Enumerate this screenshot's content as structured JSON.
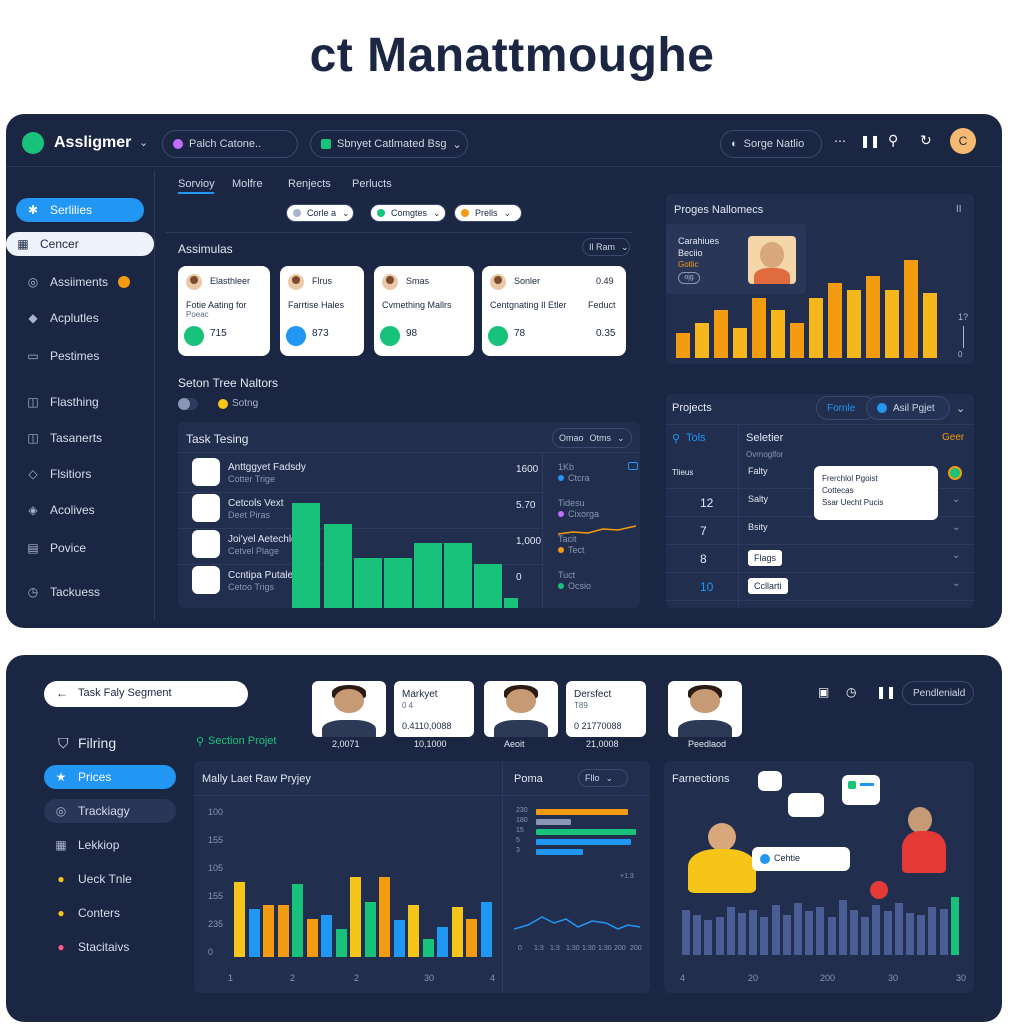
{
  "page_title": "ct Manattmoughe",
  "top": {
    "brand": "Assligmer",
    "search_pill": "Palch Catone..",
    "project_pill": "Sbnyet Catlmated Bsg",
    "user_pill": "Sorge Natlio",
    "avatar_letter": "C"
  },
  "sidebar": [
    {
      "label": "Serlilies",
      "icon": "✱"
    },
    {
      "label": "Cencer",
      "icon": "▦"
    },
    {
      "label": "Assiiments",
      "icon": "◎"
    },
    {
      "label": "Acplutles",
      "icon": "◆"
    },
    {
      "label": "Pestimes",
      "icon": "▭"
    },
    {
      "label": "Flasthing",
      "icon": "◫"
    },
    {
      "label": "Tasanerts",
      "icon": "◫"
    },
    {
      "label": "Flsitiors",
      "icon": "◇"
    },
    {
      "label": "Acolives",
      "icon": "◈"
    },
    {
      "label": "Povice",
      "icon": "▤"
    },
    {
      "label": "Tackuess",
      "icon": "◷"
    }
  ],
  "tabs": [
    "Sorvioy",
    "Molfre",
    "Renjects",
    "Perlucts"
  ],
  "filters": [
    "Corle a",
    "Comgtes",
    "Prells"
  ],
  "assignments": {
    "title": "Assimulas",
    "menu": "Il Ram",
    "cards": [
      {
        "name": "Elasthleer",
        "desc": "Fotie Aating for",
        "sub": "Poeac",
        "value": "715",
        "value2": ""
      },
      {
        "name": "Flrus",
        "desc": "Farrtise Hales",
        "sub": "",
        "value": "873",
        "value2": ""
      },
      {
        "name": "Smas",
        "desc": "Cvmething Mallrs",
        "sub": "",
        "value": "98",
        "value2": ""
      },
      {
        "name": "Sonler",
        "desc": "Centgnating Il Etler",
        "sub": "",
        "value": "78",
        "value2": "0.35",
        "extra_name": "0.49",
        "extra_desc": "Feduct"
      }
    ]
  },
  "section_tree": {
    "title": "Seton Tree Naltors",
    "toggle_label": "Sotng"
  },
  "task_testing": {
    "title": "Task Tesing",
    "btn1": "Omao",
    "btn2": "Otms",
    "rows": [
      {
        "name": "Anttggyet Fadsdy",
        "sub": "Cotter Trige",
        "value": "1600"
      },
      {
        "name": "Cetcols Vext",
        "sub": "Deet Piras",
        "value": "5.70"
      },
      {
        "name": "Joi'yel Aetechlo",
        "sub": "Cetvel Plage",
        "value": "1,000"
      },
      {
        "name": "Ccntipa Putale",
        "sub": "Cetoo Trigs",
        "value": "0"
      }
    ],
    "side_rows": [
      {
        "a": "1Kb",
        "b": "Ctcra"
      },
      {
        "a": "Tidesu",
        "b": "Cixorga"
      },
      {
        "a": "Tacit",
        "b": "Tect"
      },
      {
        "a": "Tuct",
        "b": "Ocsio"
      }
    ],
    "bars": [
      100,
      80,
      48,
      48,
      62,
      62,
      42,
      10
    ]
  },
  "progress_milestones": {
    "title": "Proges Nallomecs",
    "menu": "II",
    "profile_name": "Carahiues",
    "profile_sub": "Beciio",
    "profile_tag": "Gotlic",
    "profile_btn": "ojg",
    "bars": [
      25,
      35,
      48,
      30,
      60,
      48,
      35,
      60,
      75,
      68,
      82,
      68,
      98,
      65
    ],
    "colors": [
      "#f39c12",
      "#f5b71b",
      "#f39c12",
      "#f5b71b",
      "#f39c12",
      "#f5b71b",
      "#f39c12",
      "#f5b71b",
      "#f39c12",
      "#f5b71b",
      "#f39c12",
      "#f5b71b",
      "#f39c12",
      "#f5b71b"
    ],
    "axis_top": "1?",
    "axis_bottom": "0"
  },
  "projects": {
    "title": "Projects",
    "btn_link": "Fornle",
    "btn_select": "Asil Pgjet",
    "col_left": "Tols",
    "col_right": "Seletier",
    "col_right_tag": "Geer",
    "left_rows": [
      "Tlieus",
      "12",
      "7",
      "8",
      "10"
    ],
    "right_header": "Ovrnoglfor",
    "right_rows": [
      "Falty",
      "Salty",
      "Bsity",
      "Flags",
      "Ccllarti"
    ],
    "popup_line1": "Frerchlol Pgoist",
    "popup_line2": "Cottecas",
    "popup_line3": "Ssar Uecht Pucis"
  },
  "bottom": {
    "search_label": "Task Faly Segment",
    "filter_title": "Filring",
    "side": [
      {
        "label": "Prices",
        "icon": "★"
      },
      {
        "label": "Trackiagy",
        "icon": "◎"
      },
      {
        "label": "Lekkiop",
        "icon": "▦"
      },
      {
        "label": "Ueck Tnle",
        "icon": "●"
      },
      {
        "label": "Conters",
        "icon": "●"
      },
      {
        "label": "Stacitaivs",
        "icon": "●"
      }
    ],
    "side_dot_colors": [
      "#ffffff",
      "#ffffff",
      "#ffffff",
      "#f5c518",
      "#f5c518",
      "#ff5c8a"
    ],
    "section_project": "Section Projet",
    "people": [
      {
        "name": "",
        "value": "2,0071"
      },
      {
        "name": "Markyet",
        "sub": "0 4",
        "value": "0.4110,0088",
        "foot": "10,1000"
      },
      {
        "name": "",
        "value": "Aeoit"
      },
      {
        "name": "Dersfect",
        "sub": "T89",
        "value": "0 21770088",
        "foot": "21,0008"
      },
      {
        "name": "",
        "value": "Peedlaod"
      }
    ],
    "toolbar_btn": "Pendleniald",
    "main_chart_title": "Mally Laet Raw Pryjey",
    "yticks": [
      "100",
      "155",
      "105",
      "155",
      "235",
      "0"
    ],
    "xticks": [
      "1",
      "2",
      "2",
      "30",
      "4"
    ],
    "poma_title": "Poma",
    "poma_filter": "Fllo",
    "poma_ylabels": [
      "230",
      "180",
      "15",
      "5",
      "3"
    ],
    "poma_xticks": [
      "0",
      "1:3",
      "1:3",
      "1:30",
      "1:30",
      "1:30",
      "200",
      "200"
    ],
    "poma_note": "+1:3",
    "fam_title": "Farnections",
    "fam_bubble": "Cehtie",
    "fam_xticks": [
      "4",
      "20",
      "200",
      "30",
      "30"
    ]
  },
  "chart_data": [
    {
      "type": "bar",
      "title": "Task Tesing",
      "values": [
        100,
        80,
        48,
        48,
        62,
        62,
        42,
        10
      ]
    },
    {
      "type": "bar",
      "title": "Proges Nallomecs",
      "values": [
        25,
        35,
        48,
        30,
        60,
        48,
        35,
        60,
        75,
        68,
        82,
        68,
        98,
        65
      ]
    },
    {
      "type": "bar",
      "title": "Mally Laet Raw Pryjey",
      "values": [
        75,
        48,
        52,
        52,
        73,
        38,
        42,
        28,
        80,
        55,
        80,
        37,
        52,
        18,
        30,
        50,
        38,
        55
      ],
      "colors": [
        "#f5c518",
        "#2196f3",
        "#f39c12",
        "#f39c12",
        "#19c27a",
        "#f39c12",
        "#2196f3",
        "#19c27a",
        "#f5c518",
        "#19c27a",
        "#f39c12",
        "#2196f3",
        "#f5c518",
        "#19c27a",
        "#2196f3",
        "#f5c518",
        "#f39c12",
        "#2196f3"
      ]
    },
    {
      "type": "bar",
      "title": "Poma",
      "values": [
        92,
        35,
        100,
        95,
        47
      ]
    },
    {
      "type": "bar",
      "title": "Farnections",
      "values": [
        45,
        40,
        35,
        38,
        48,
        42,
        45,
        38,
        50,
        40,
        52,
        44,
        48,
        38,
        55,
        45,
        38,
        50,
        44,
        52,
        42,
        40,
        48,
        46,
        58
      ]
    }
  ]
}
